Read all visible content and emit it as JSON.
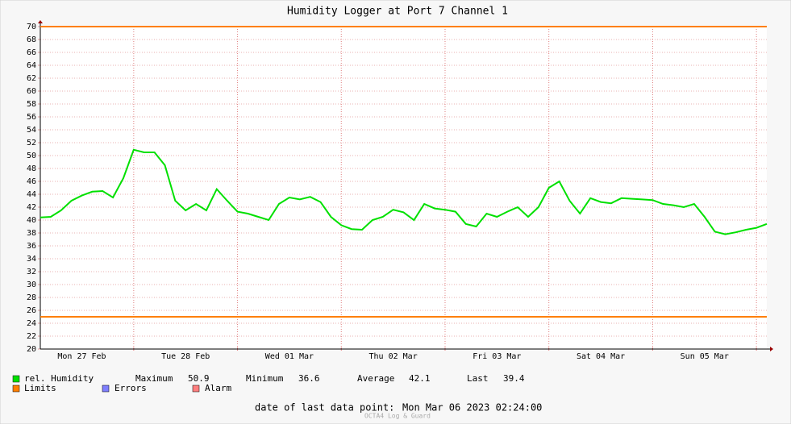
{
  "chart_data": {
    "type": "line",
    "title": "Humidity Logger at Port 7 Channel 1",
    "xlim": [
      0.1,
      7.1
    ],
    "xticks": [
      {
        "value": 0.5,
        "label": "Mon 27 Feb"
      },
      {
        "value": 1.5,
        "label": "Tue 28 Feb"
      },
      {
        "value": 2.5,
        "label": "Wed 01 Mar"
      },
      {
        "value": 3.5,
        "label": "Thu 02 Mar"
      },
      {
        "value": 4.5,
        "label": "Fri 03 Mar"
      },
      {
        "value": 5.5,
        "label": "Sat 04 Mar"
      },
      {
        "value": 6.5,
        "label": "Sun 05 Mar"
      }
    ],
    "xgrid": [
      1,
      2,
      3,
      4,
      5,
      6,
      7
    ],
    "ylim": [
      20,
      70
    ],
    "yticks": [
      20,
      22,
      24,
      26,
      28,
      30,
      32,
      34,
      36,
      38,
      40,
      42,
      44,
      46,
      48,
      50,
      52,
      54,
      56,
      58,
      60,
      62,
      64,
      66,
      68,
      70
    ],
    "grid": true,
    "series": [
      {
        "name": "rel. Humidity",
        "color": "#00e000",
        "x": [
          0.1,
          0.2,
          0.3,
          0.4,
          0.5,
          0.6,
          0.7,
          0.8,
          0.9,
          1.0,
          1.1,
          1.2,
          1.3,
          1.4,
          1.5,
          1.6,
          1.7,
          1.8,
          1.9,
          2.0,
          2.1,
          2.2,
          2.3,
          2.4,
          2.5,
          2.6,
          2.7,
          2.8,
          2.9,
          3.0,
          3.1,
          3.2,
          3.3,
          3.4,
          3.5,
          3.6,
          3.7,
          3.8,
          3.9,
          4.0,
          4.1,
          4.2,
          4.3,
          4.4,
          4.5,
          4.6,
          4.7,
          4.8,
          4.9,
          5.0,
          5.1,
          5.2,
          5.3,
          5.4,
          5.5,
          5.6,
          5.7,
          5.8,
          5.9,
          6.0,
          6.1,
          6.2,
          6.3,
          6.4,
          6.5,
          6.6,
          6.7,
          6.8,
          6.9,
          7.0,
          7.1
        ],
        "values": [
          40.4,
          40.5,
          41.5,
          43,
          43.8,
          44.4,
          44.5,
          43.5,
          46.5,
          50.9,
          50.5,
          50.5,
          48.5,
          43,
          41.5,
          42.5,
          41.5,
          44.8,
          43,
          41.3,
          41,
          40.5,
          40,
          42.5,
          43.5,
          43.2,
          43.6,
          42.8,
          40.5,
          39.2,
          38.6,
          38.5,
          40,
          40.5,
          41.6,
          41.2,
          40,
          42.5,
          41.8,
          41.6,
          41.3,
          39.4,
          39,
          41,
          40.5,
          41.3,
          42,
          40.5,
          42,
          45,
          46,
          43,
          41,
          43.4,
          42.8,
          42.6,
          43.4,
          43.3,
          43.2,
          43.1,
          42.5,
          42.3,
          42,
          42.5,
          40.5,
          38.2,
          37.8,
          38.1,
          38.5,
          38.8,
          39.4
        ]
      }
    ],
    "limits": {
      "name": "Limits",
      "color": "#ff7f00",
      "values": [
        70,
        25
      ]
    },
    "legend_extra": [
      {
        "name": "Errors",
        "color": "#7f7fff"
      },
      {
        "name": "Alarm",
        "color": "#ff7f7f"
      }
    ],
    "stats": [
      {
        "label": "Maximum",
        "value": 50.9
      },
      {
        "label": "Minimum",
        "value": 36.6
      },
      {
        "label": "Average",
        "value": 42.1
      },
      {
        "label": "Last",
        "value": 39.4
      }
    ],
    "footer_label": "date of last data point:",
    "footer_value": "Mon Mar 06 2023 02:24:00",
    "watermark": "OCTA4 Log & Guard"
  }
}
